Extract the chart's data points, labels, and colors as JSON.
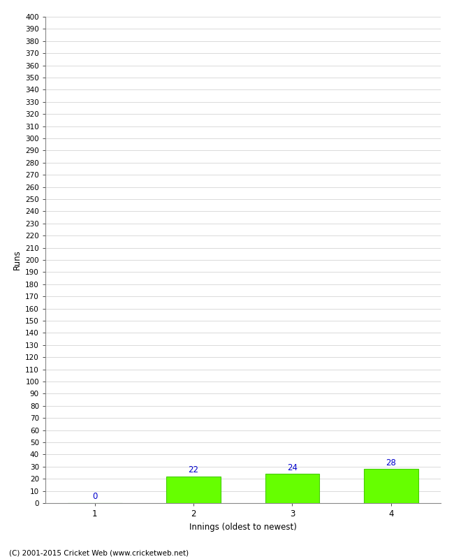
{
  "xlabel": "Innings (oldest to newest)",
  "ylabel": "Runs",
  "categories": [
    1,
    2,
    3,
    4
  ],
  "values": [
    0,
    22,
    24,
    28
  ],
  "bar_color": "#66ff00",
  "bar_edge_color": "#44cc00",
  "label_color": "#0000cc",
  "ylim": [
    0,
    400
  ],
  "ytick_step": 10,
  "background_color": "#ffffff",
  "grid_color": "#cccccc",
  "footer": "(C) 2001-2015 Cricket Web (www.cricketweb.net)"
}
